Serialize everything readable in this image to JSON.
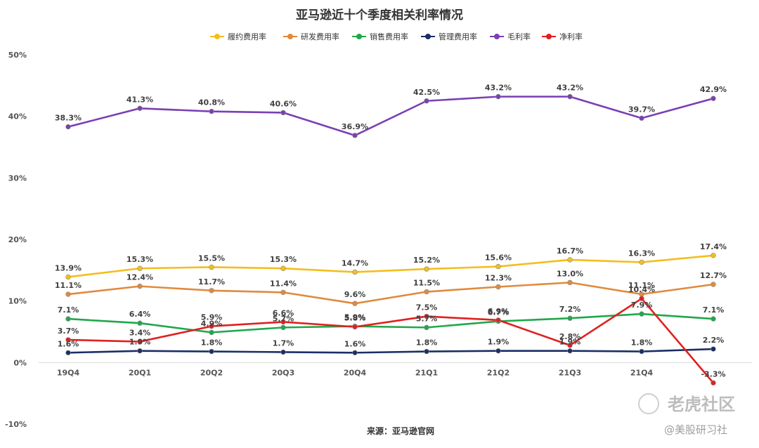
{
  "chart_data": {
    "type": "line",
    "title": "亚马逊近十个季度相关利率情况",
    "categories": [
      "19Q4",
      "20Q1",
      "20Q2",
      "20Q3",
      "20Q4",
      "21Q1",
      "21Q2",
      "21Q3",
      "21Q4",
      ""
    ],
    "ylim": [
      -10,
      50
    ],
    "yticks": [
      "50%",
      "40%",
      "30%",
      "20%",
      "10%",
      "0%",
      "-10%"
    ],
    "ytick_values": [
      50,
      40,
      30,
      20,
      10,
      0,
      -10
    ],
    "grid": "baseline only",
    "legend_position": "top",
    "series": [
      {
        "name": "履约费用率",
        "color": "#f4be1c",
        "values": [
          13.9,
          15.3,
          15.5,
          15.3,
          14.7,
          15.2,
          15.6,
          16.7,
          16.3,
          17.4
        ]
      },
      {
        "name": "研发费用率",
        "color": "#e08a3c",
        "values": [
          11.1,
          12.4,
          11.7,
          11.4,
          9.6,
          11.5,
          12.3,
          13.0,
          11.1,
          12.7
        ]
      },
      {
        "name": "销售费用率",
        "color": "#1fa84b",
        "values": [
          7.1,
          6.4,
          4.9,
          5.7,
          5.9,
          5.7,
          6.7,
          7.2,
          7.9,
          7.1
        ]
      },
      {
        "name": "管理费用率",
        "color": "#1b2f66",
        "values": [
          1.6,
          1.9,
          1.8,
          1.7,
          1.6,
          1.8,
          1.9,
          1.9,
          1.8,
          2.2
        ]
      },
      {
        "name": "毛利率",
        "color": "#7b3fb3",
        "values": [
          38.3,
          41.3,
          40.8,
          40.6,
          36.9,
          42.5,
          43.2,
          43.2,
          39.7,
          42.9
        ]
      },
      {
        "name": "净利率",
        "color": "#e02020",
        "values": [
          3.7,
          3.4,
          5.9,
          6.6,
          5.8,
          7.5,
          6.9,
          2.8,
          10.4,
          -3.3
        ]
      }
    ]
  },
  "source": "来源：亚马逊官网",
  "watermark": {
    "main": "老虎社区",
    "sub": "@美股研习社"
  }
}
